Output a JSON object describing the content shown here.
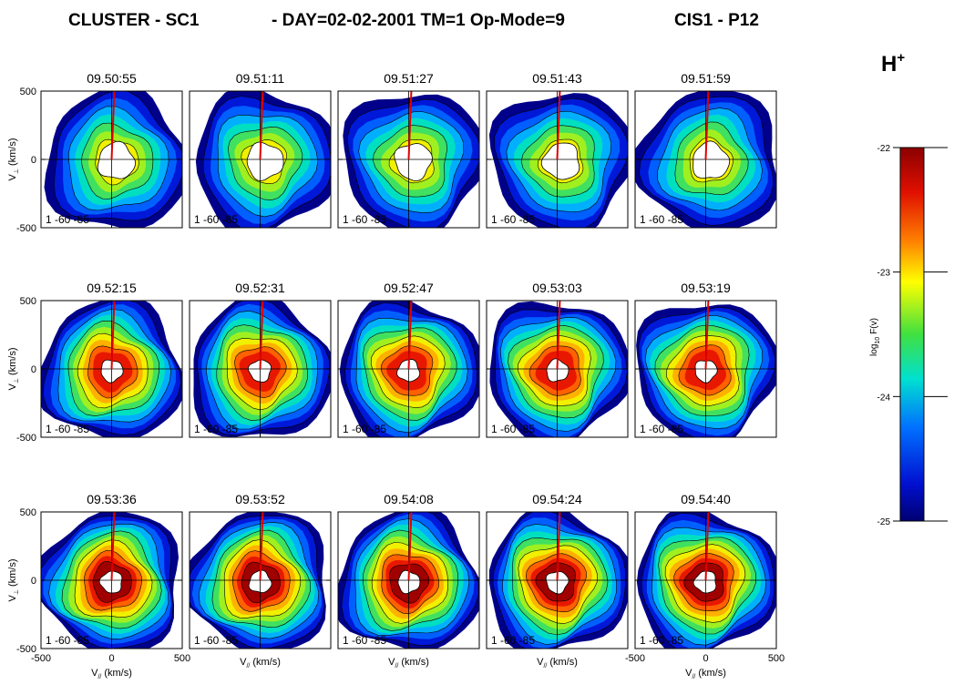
{
  "header": {
    "title_left": "CLUSTER - SC1",
    "title_mid": "- DAY=02-02-2001 TM=1 Op-Mode=9",
    "title_right": "CIS1 - P12"
  },
  "chart_data": {
    "type": "contour-grid",
    "panels": [
      {
        "time": "09.50:55",
        "annotation": "1 -60 -85"
      },
      {
        "time": "09.51:11",
        "annotation": "1 -60 -85"
      },
      {
        "time": "09.51:27",
        "annotation": "1 -60 -85"
      },
      {
        "time": "09.51:43",
        "annotation": "1 -60 -85"
      },
      {
        "time": "09.51:59",
        "annotation": "1 -60 -85"
      },
      {
        "time": "09.52:15",
        "annotation": "1 -60 -85"
      },
      {
        "time": "09.52:31",
        "annotation": "1 -60 -85"
      },
      {
        "time": "09.52:47",
        "annotation": "1 -60 -85"
      },
      {
        "time": "09.53:03",
        "annotation": "1 -60 -85"
      },
      {
        "time": "09.53:19",
        "annotation": "1 -60 -85"
      },
      {
        "time": "09.53:36",
        "annotation": "1 -60 -85"
      },
      {
        "time": "09.53:52",
        "annotation": "1 -60 -85"
      },
      {
        "time": "09.54:08",
        "annotation": "1 -60 -85"
      },
      {
        "time": "09.54:24",
        "annotation": "1 -60 -85"
      },
      {
        "time": "09.54:40",
        "annotation": "1 -60 -85"
      }
    ],
    "xlim": [
      -500,
      500
    ],
    "ylim": [
      -500,
      500
    ],
    "xticks": [
      -500,
      0,
      500
    ],
    "yticks": [
      -500,
      0,
      500
    ],
    "xlabel": {
      "symbol": "V",
      "sub": "//",
      "unit": "(km/s)"
    },
    "ylabel": {
      "symbol": "V",
      "sub": "⊥",
      "unit": "(km/s)"
    },
    "species": {
      "symbol": "H",
      "sup": "+"
    },
    "colorbar": {
      "label": {
        "base": "log",
        "sub": "10",
        "rest": "F(v)"
      },
      "lim": [
        -25,
        -22
      ],
      "ticks": [
        -25,
        -24,
        -23,
        -22
      ]
    }
  }
}
